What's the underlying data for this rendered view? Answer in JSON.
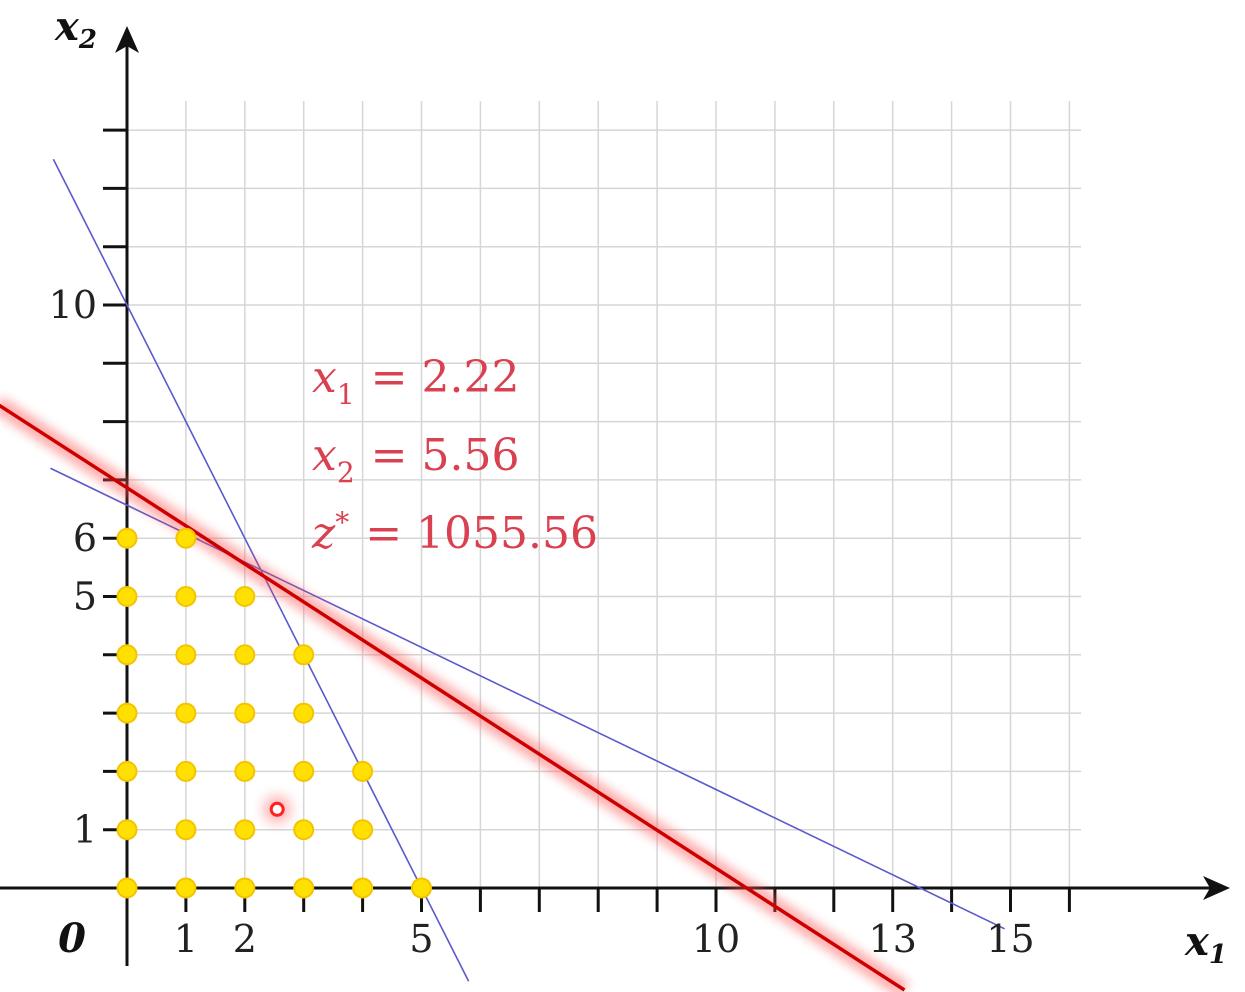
{
  "chart_data": {
    "type": "scatter",
    "title": "",
    "xlabel": "x",
    "xlabel_sub": "1",
    "ylabel": "x",
    "ylabel_sub": "2",
    "origin_label": "0",
    "xlim": [
      -2.2,
      18.5
    ],
    "ylim": [
      -1.3,
      14.6
    ],
    "grid": true,
    "x_ticks": [
      1,
      2,
      3,
      4,
      5,
      6,
      7,
      8,
      9,
      10,
      11,
      12,
      13,
      14,
      15,
      16
    ],
    "y_ticks": [
      1,
      2,
      3,
      4,
      5,
      6,
      7,
      8,
      9,
      10,
      11,
      12,
      13
    ],
    "x_tick_labels": [
      {
        "x": 1,
        "text": "1"
      },
      {
        "x": 2,
        "text": "2"
      },
      {
        "x": 5,
        "text": "5"
      },
      {
        "x": 10,
        "text": "10"
      },
      {
        "x": 13,
        "text": "13"
      },
      {
        "x": 15,
        "text": "15"
      }
    ],
    "y_tick_labels": [
      {
        "y": 1,
        "text": "1"
      },
      {
        "y": 5,
        "text": "5"
      },
      {
        "y": 6,
        "text": "6"
      },
      {
        "y": 10,
        "text": "10"
      }
    ],
    "constraint_lines": [
      {
        "x1": -1.25,
        "y1": 12.5,
        "x2": 5.8,
        "y2": -1.6,
        "color": "#5a5acc"
      },
      {
        "x1": -1.3,
        "y1": 7.2,
        "x2": 14.9,
        "y2": -0.7,
        "color": "#5a5acc"
      }
    ],
    "objective_line": {
      "x1": -2.2,
      "y1": 8.3,
      "x2": 13.2,
      "y2": -1.75,
      "color": "#cc0000"
    },
    "feasible_points": [
      {
        "x": 0,
        "y": 0
      },
      {
        "x": 1,
        "y": 0
      },
      {
        "x": 2,
        "y": 0
      },
      {
        "x": 3,
        "y": 0
      },
      {
        "x": 4,
        "y": 0
      },
      {
        "x": 5,
        "y": 0
      },
      {
        "x": 0,
        "y": 1
      },
      {
        "x": 1,
        "y": 1
      },
      {
        "x": 2,
        "y": 1
      },
      {
        "x": 3,
        "y": 1
      },
      {
        "x": 4,
        "y": 1
      },
      {
        "x": 0,
        "y": 2
      },
      {
        "x": 1,
        "y": 2
      },
      {
        "x": 2,
        "y": 2
      },
      {
        "x": 3,
        "y": 2
      },
      {
        "x": 4,
        "y": 2
      },
      {
        "x": 0,
        "y": 3
      },
      {
        "x": 1,
        "y": 3
      },
      {
        "x": 2,
        "y": 3
      },
      {
        "x": 3,
        "y": 3
      },
      {
        "x": 0,
        "y": 4
      },
      {
        "x": 1,
        "y": 4
      },
      {
        "x": 2,
        "y": 4
      },
      {
        "x": 3,
        "y": 4
      },
      {
        "x": 0,
        "y": 5
      },
      {
        "x": 1,
        "y": 5
      },
      {
        "x": 2,
        "y": 5
      },
      {
        "x": 0,
        "y": 6
      },
      {
        "x": 1,
        "y": 6
      }
    ],
    "point_color": "#ffe000",
    "highlight_point": {
      "x": 2.55,
      "y": 1.35,
      "color": "#ff2020"
    },
    "annotations": [
      {
        "var": "x",
        "sub": "1",
        "sup": "",
        "value": "= 2.22"
      },
      {
        "var": "x",
        "sub": "2",
        "sup": "",
        "value": "= 5.56"
      },
      {
        "var": "z",
        "sub": "",
        "sup": "*",
        "value": "= 1055.56"
      }
    ],
    "annotation_color": "#d94050"
  }
}
